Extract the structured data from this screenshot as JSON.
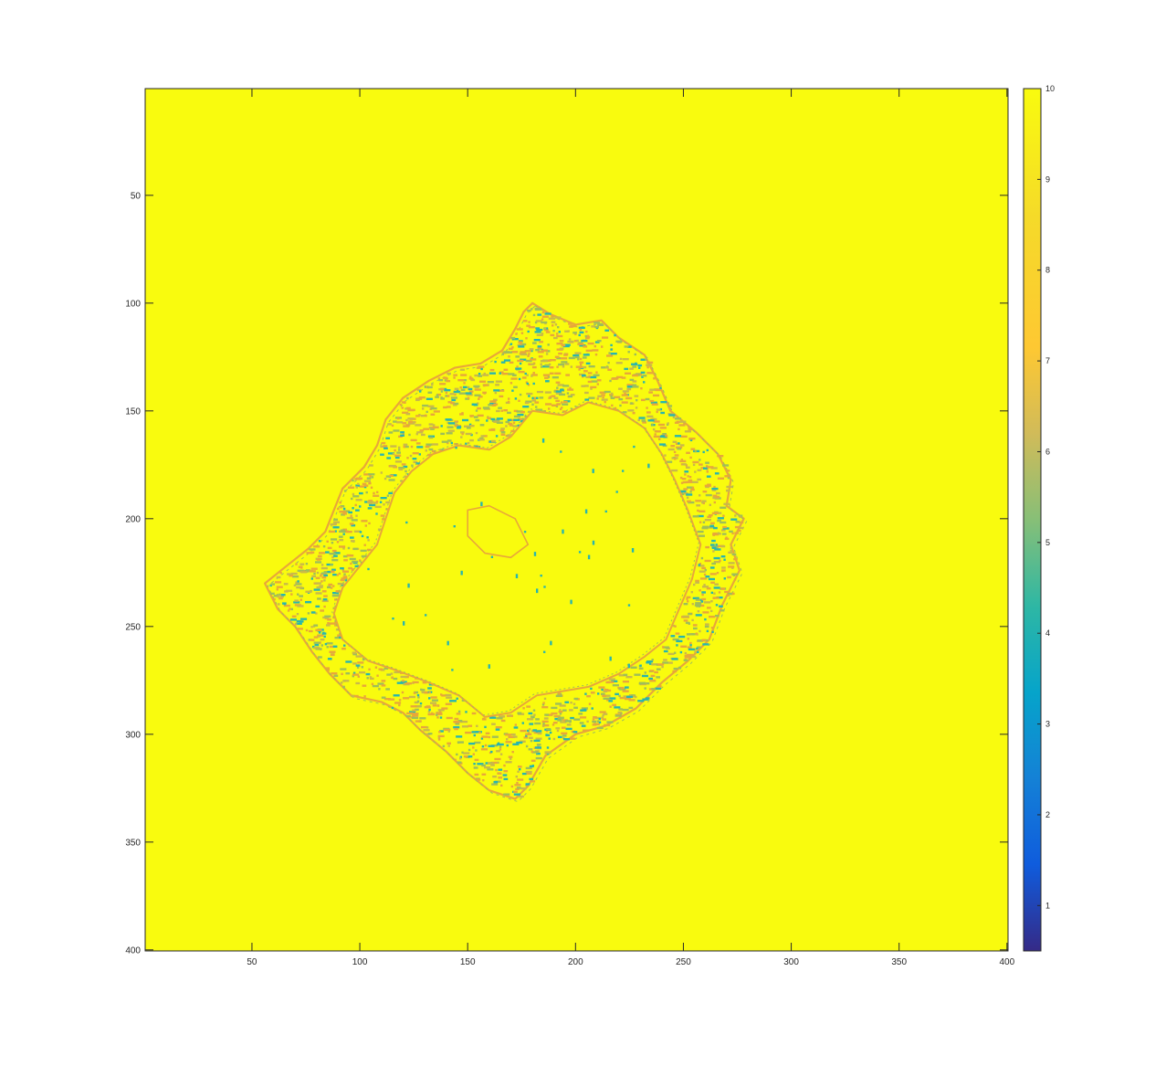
{
  "chart_data": {
    "type": "heatmap",
    "title": "",
    "xlabel": "",
    "ylabel": "",
    "xlim": [
      0.5,
      400.5
    ],
    "ylim": [
      0.5,
      400.5
    ],
    "y_direction": "reverse",
    "xticks": [
      50,
      100,
      150,
      200,
      250,
      300,
      350,
      400
    ],
    "yticks": [
      50,
      100,
      150,
      200,
      250,
      300,
      350,
      400
    ],
    "xtick_labels": [
      "50",
      "100",
      "150",
      "200",
      "250",
      "300",
      "350",
      "400"
    ],
    "ytick_labels": [
      "50",
      "100",
      "150",
      "200",
      "250",
      "300",
      "350",
      "400"
    ],
    "background_value": 10,
    "background_color": "#F9FB0E",
    "colormap": "parula",
    "grid": false,
    "colorbar": {
      "placement": "right",
      "range": [
        0.5,
        10
      ],
      "ticks": [
        1,
        2,
        3,
        4,
        5,
        6,
        7,
        8,
        9,
        10
      ],
      "tick_labels": [
        "1",
        "2",
        "3",
        "4",
        "5",
        "6",
        "7",
        "8",
        "9",
        "10"
      ]
    },
    "region": {
      "description_values": [
        5,
        7,
        9
      ],
      "boundary": [
        [
          180,
          100
        ],
        [
          188,
          105
        ],
        [
          200,
          110
        ],
        [
          212,
          108
        ],
        [
          220,
          116
        ],
        [
          232,
          124
        ],
        [
          238,
          136
        ],
        [
          244,
          150
        ],
        [
          256,
          160
        ],
        [
          266,
          170
        ],
        [
          272,
          182
        ],
        [
          270,
          194
        ],
        [
          278,
          200
        ],
        [
          272,
          212
        ],
        [
          276,
          224
        ],
        [
          268,
          240
        ],
        [
          262,
          256
        ],
        [
          252,
          266
        ],
        [
          240,
          276
        ],
        [
          228,
          288
        ],
        [
          214,
          296
        ],
        [
          200,
          300
        ],
        [
          186,
          310
        ],
        [
          178,
          324
        ],
        [
          172,
          330
        ],
        [
          160,
          326
        ],
        [
          150,
          318
        ],
        [
          140,
          308
        ],
        [
          128,
          298
        ],
        [
          120,
          290
        ],
        [
          110,
          285
        ],
        [
          96,
          282
        ],
        [
          86,
          272
        ],
        [
          78,
          262
        ],
        [
          70,
          250
        ],
        [
          62,
          242
        ],
        [
          56,
          230
        ],
        [
          66,
          222
        ],
        [
          76,
          214
        ],
        [
          84,
          206
        ],
        [
          88,
          196
        ],
        [
          92,
          186
        ],
        [
          102,
          176
        ],
        [
          108,
          166
        ],
        [
          112,
          154
        ],
        [
          120,
          144
        ],
        [
          132,
          136
        ],
        [
          144,
          130
        ],
        [
          156,
          128
        ],
        [
          166,
          122
        ],
        [
          172,
          112
        ],
        [
          176,
          104
        ]
      ],
      "inner_boundary": [
        [
          180,
          150
        ],
        [
          194,
          152
        ],
        [
          206,
          146
        ],
        [
          220,
          150
        ],
        [
          232,
          158
        ],
        [
          240,
          170
        ],
        [
          246,
          182
        ],
        [
          252,
          196
        ],
        [
          258,
          212
        ],
        [
          254,
          228
        ],
        [
          248,
          242
        ],
        [
          242,
          256
        ],
        [
          232,
          264
        ],
        [
          220,
          272
        ],
        [
          206,
          278
        ],
        [
          194,
          280
        ],
        [
          182,
          282
        ],
        [
          170,
          290
        ],
        [
          158,
          292
        ],
        [
          146,
          282
        ],
        [
          132,
          276
        ],
        [
          116,
          270
        ],
        [
          104,
          266
        ],
        [
          92,
          256
        ],
        [
          88,
          244
        ],
        [
          92,
          232
        ],
        [
          100,
          222
        ],
        [
          108,
          212
        ],
        [
          112,
          200
        ],
        [
          116,
          188
        ],
        [
          124,
          178
        ],
        [
          134,
          170
        ],
        [
          146,
          166
        ],
        [
          160,
          168
        ],
        [
          170,
          162
        ]
      ],
      "inner_island": [
        [
          150,
          196
        ],
        [
          160,
          194
        ],
        [
          172,
          200
        ],
        [
          178,
          212
        ],
        [
          170,
          218
        ],
        [
          158,
          216
        ],
        [
          150,
          208
        ]
      ]
    }
  }
}
